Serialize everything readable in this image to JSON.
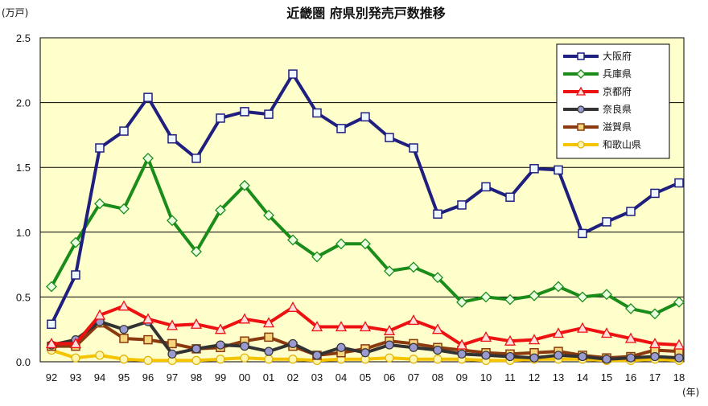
{
  "chart_data": {
    "type": "line",
    "title": "近畿圏 府県別発売戸数推移",
    "ylabel": "(万戸)",
    "xlabel": "(年)",
    "ylim": [
      0,
      2.5
    ],
    "yticks": [
      "0.0",
      "0.5",
      "1.0",
      "1.5",
      "2.0",
      "2.5"
    ],
    "categories": [
      "92",
      "93",
      "94",
      "95",
      "96",
      "97",
      "98",
      "99",
      "00",
      "01",
      "02",
      "03",
      "04",
      "05",
      "06",
      "07",
      "08",
      "09",
      "10",
      "11",
      "12",
      "13",
      "14",
      "15",
      "16",
      "17",
      "18"
    ],
    "grid": "horizontal",
    "legend_position": "top-right",
    "plot_background": "#ffffcc",
    "series": [
      {
        "name": "大阪府",
        "color": "#1f1f7f",
        "marker": "square",
        "values": [
          0.29,
          0.67,
          1.65,
          1.78,
          2.04,
          1.72,
          1.57,
          1.88,
          1.93,
          1.91,
          2.22,
          1.92,
          1.8,
          1.89,
          1.73,
          1.65,
          1.14,
          1.21,
          1.35,
          1.27,
          1.49,
          1.48,
          0.99,
          1.08,
          1.16,
          1.3,
          1.38
        ]
      },
      {
        "name": "兵庫県",
        "color": "#1a8c1a",
        "marker": "diamond",
        "values": [
          0.58,
          0.92,
          1.22,
          1.18,
          1.57,
          1.09,
          0.85,
          1.17,
          1.36,
          1.13,
          0.94,
          0.81,
          0.91,
          0.91,
          0.7,
          0.73,
          0.65,
          0.46,
          0.5,
          0.48,
          0.51,
          0.58,
          0.5,
          0.52,
          0.41,
          0.37,
          0.46
        ]
      },
      {
        "name": "京都府",
        "color": "#ee1111",
        "marker": "triangle",
        "values": [
          0.14,
          0.14,
          0.36,
          0.43,
          0.33,
          0.28,
          0.29,
          0.25,
          0.33,
          0.3,
          0.42,
          0.27,
          0.27,
          0.27,
          0.24,
          0.32,
          0.25,
          0.13,
          0.19,
          0.16,
          0.17,
          0.22,
          0.26,
          0.22,
          0.18,
          0.14,
          0.13
        ]
      },
      {
        "name": "奈良県",
        "color": "#333333",
        "marker": "circle",
        "values": [
          0.13,
          0.17,
          0.31,
          0.25,
          0.31,
          0.06,
          0.1,
          0.13,
          0.12,
          0.08,
          0.14,
          0.05,
          0.11,
          0.07,
          0.13,
          0.11,
          0.09,
          0.06,
          0.05,
          0.04,
          0.03,
          0.05,
          0.04,
          0.02,
          0.03,
          0.04,
          0.03
        ]
      },
      {
        "name": "滋賀県",
        "color": "#8b3a0f",
        "marker": "square",
        "values": [
          0.12,
          0.12,
          0.3,
          0.18,
          0.17,
          0.14,
          0.1,
          0.11,
          0.16,
          0.19,
          0.12,
          0.05,
          0.07,
          0.1,
          0.16,
          0.14,
          0.11,
          0.09,
          0.07,
          0.06,
          0.07,
          0.08,
          0.05,
          0.03,
          0.04,
          0.09,
          0.08
        ]
      },
      {
        "name": "和歌山県",
        "color": "#f5c400",
        "marker": "circle",
        "values": [
          0.09,
          0.03,
          0.05,
          0.02,
          0.01,
          0.01,
          0.01,
          0.02,
          0.03,
          0.02,
          0.02,
          0.01,
          0.02,
          0.02,
          0.03,
          0.02,
          0.02,
          0.02,
          0.01,
          0.01,
          0.02,
          0.02,
          0.02,
          0.01,
          0.01,
          0.02,
          0.01
        ]
      }
    ]
  }
}
